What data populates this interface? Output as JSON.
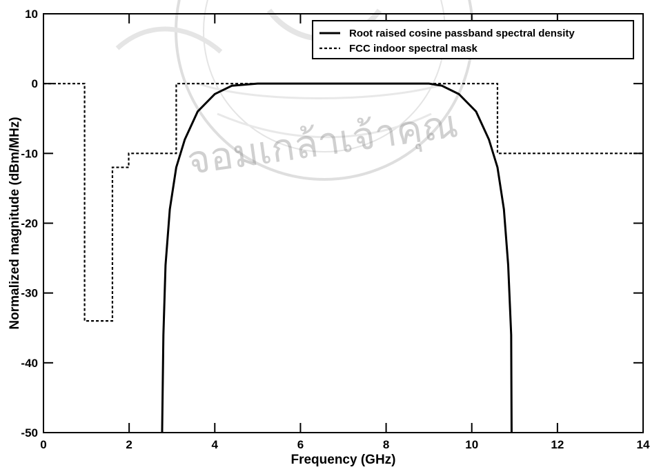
{
  "chart_data": {
    "type": "line",
    "title": "",
    "xlabel": "Frequency (GHz)",
    "ylabel": "Normalized magnitude (dBm/MHz)",
    "xlim": [
      0,
      14
    ],
    "ylim": [
      -50,
      10
    ],
    "xticks": [
      "0",
      "2",
      "4",
      "6",
      "8",
      "10",
      "12",
      "14"
    ],
    "yticks": [
      "10",
      "0",
      "-10",
      "-20",
      "-30",
      "-40",
      "-50"
    ],
    "grid": false,
    "legend": {
      "placement": "top-right"
    },
    "series": [
      {
        "name": "Root raised cosine passband spectral density",
        "style": "solid",
        "color": "#000000",
        "x": [
          2.77,
          2.8,
          2.85,
          2.95,
          3.1,
          3.3,
          3.6,
          4.0,
          4.4,
          5.0,
          6.0,
          7.0,
          8.0,
          9.0,
          9.3,
          9.7,
          10.1,
          10.4,
          10.6,
          10.75,
          10.85,
          10.92,
          10.93
        ],
        "y": [
          -50,
          -36,
          -26,
          -18,
          -12,
          -8,
          -4,
          -1.5,
          -0.3,
          0,
          0,
          0,
          0,
          0,
          -0.3,
          -1.5,
          -4,
          -8,
          -12,
          -18,
          -26,
          -36,
          -50
        ]
      },
      {
        "name": "FCC indoor spectral mask",
        "style": "dashed",
        "color": "#000000",
        "x": [
          0,
          0.96,
          0.96,
          1.61,
          1.61,
          1.99,
          1.99,
          3.1,
          3.1,
          10.6,
          10.6,
          14
        ],
        "y": [
          0,
          0,
          -34,
          -34,
          -12,
          -12,
          -10,
          -10,
          0,
          0,
          -10,
          -10
        ]
      }
    ]
  },
  "watermark": {
    "text": "จอมเกล้าเจ้าคุณ"
  }
}
